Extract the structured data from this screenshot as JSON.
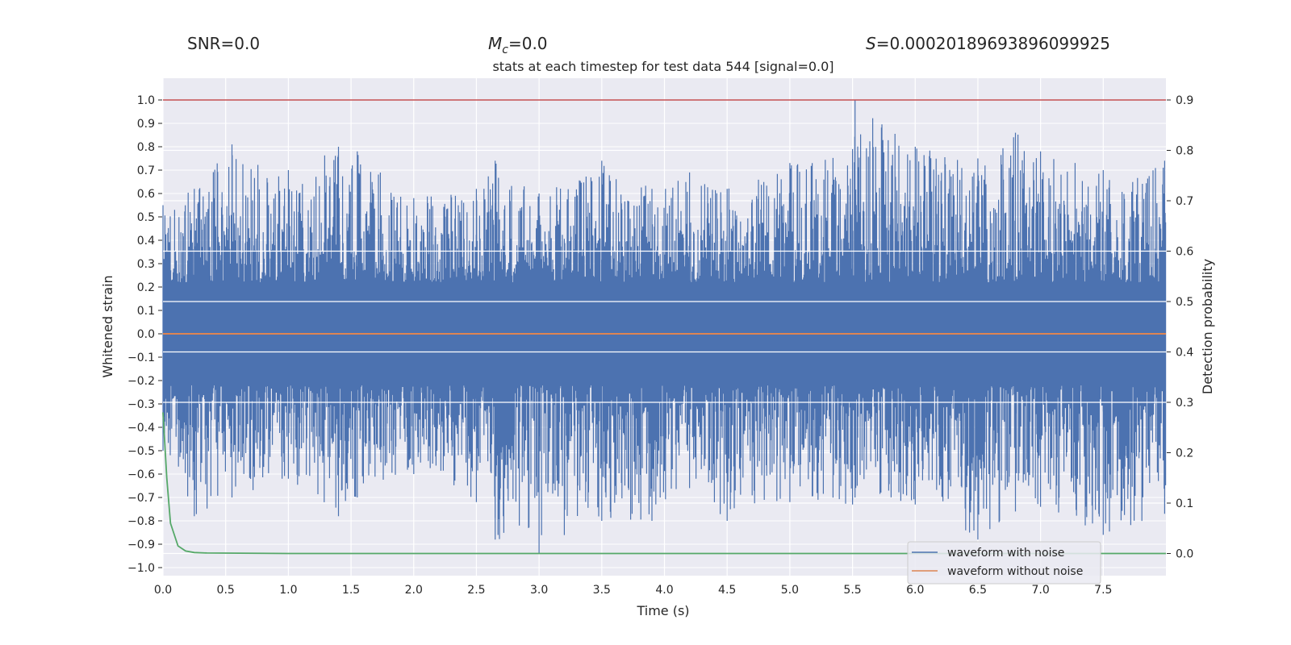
{
  "stats": {
    "snr": "SNR=0.0",
    "mc_label": "M",
    "mc_sub": "c",
    "mc_value": "=0.0",
    "s_label": "S",
    "s_value": "=0.00020189693896099925"
  },
  "chart_data": {
    "type": "line",
    "title": "stats at each timestep for test data 544 [signal=0.0]",
    "xlabel": "Time (s)",
    "ylabel": "Whitened strain",
    "ylabel_right": "Detection probability",
    "xlim": [
      0.0,
      8.0
    ],
    "ylim": [
      -1.05,
      1.1
    ],
    "ylim_right": [
      -0.04,
      0.93
    ],
    "x_ticks": [
      "0.0",
      "0.5",
      "1.0",
      "1.5",
      "2.0",
      "2.5",
      "3.0",
      "3.5",
      "4.0",
      "4.5",
      "5.0",
      "5.5",
      "6.0",
      "6.5",
      "7.0",
      "7.5"
    ],
    "y_ticks": [
      "1.0",
      "0.9",
      "0.8",
      "0.7",
      "0.6",
      "0.5",
      "0.4",
      "0.3",
      "0.2",
      "0.1",
      "0.0",
      "−0.1",
      "−0.2",
      "−0.3",
      "−0.4",
      "−0.5",
      "−0.6",
      "−0.7",
      "−0.8",
      "−0.9",
      "−1.0"
    ],
    "y_ticks_right": [
      "0.9",
      "0.8",
      "0.7",
      "0.6",
      "0.5",
      "0.4",
      "0.3",
      "0.2",
      "0.1",
      "0.0"
    ],
    "legend": {
      "position": "lower-right",
      "entries": [
        "waveform with noise",
        "waveform without noise"
      ]
    },
    "series": [
      {
        "name": "waveform with noise",
        "axis": "left",
        "description": "whitened noise, dense envelope",
        "envelope": {
          "x": [
            0.0,
            0.25,
            0.55,
            1.0,
            1.4,
            1.55,
            2.0,
            2.5,
            2.65,
            3.0,
            3.5,
            3.9,
            4.2,
            4.5,
            5.0,
            5.5,
            5.52,
            6.0,
            6.5,
            6.8,
            7.0,
            7.5,
            7.99
          ],
          "upper": [
            0.55,
            0.62,
            0.81,
            0.7,
            0.8,
            0.78,
            0.58,
            0.62,
            0.74,
            0.6,
            0.74,
            0.62,
            0.69,
            0.62,
            0.73,
            0.79,
            1.0,
            0.8,
            0.75,
            0.86,
            0.78,
            0.7,
            0.74
          ],
          "lower": [
            -0.5,
            -0.78,
            -0.7,
            -0.62,
            -0.78,
            -0.7,
            -0.6,
            -0.72,
            -0.88,
            -0.94,
            -0.8,
            -0.8,
            -0.66,
            -0.8,
            -0.72,
            -0.73,
            -0.7,
            -0.73,
            -0.88,
            -0.76,
            -0.74,
            -0.86,
            -0.77
          ]
        },
        "color": "#4c72b0"
      },
      {
        "name": "waveform without noise",
        "axis": "left",
        "x": [
          0.0,
          8.0
        ],
        "y": [
          0.0,
          0.0
        ],
        "color": "#dd8452"
      },
      {
        "name": "detection probability",
        "axis": "right",
        "x": [
          0.0,
          0.03,
          0.06,
          0.12,
          0.18,
          0.25,
          0.35,
          1.0,
          8.0
        ],
        "y": [
          0.28,
          0.15,
          0.06,
          0.015,
          0.005,
          0.002,
          0.001,
          0.0,
          0.0
        ],
        "color": "#55a868"
      },
      {
        "name": "threshold",
        "axis": "left",
        "x": [
          0.0,
          8.0
        ],
        "y": [
          1.0,
          1.0
        ],
        "color": "#c44e52"
      }
    ]
  }
}
